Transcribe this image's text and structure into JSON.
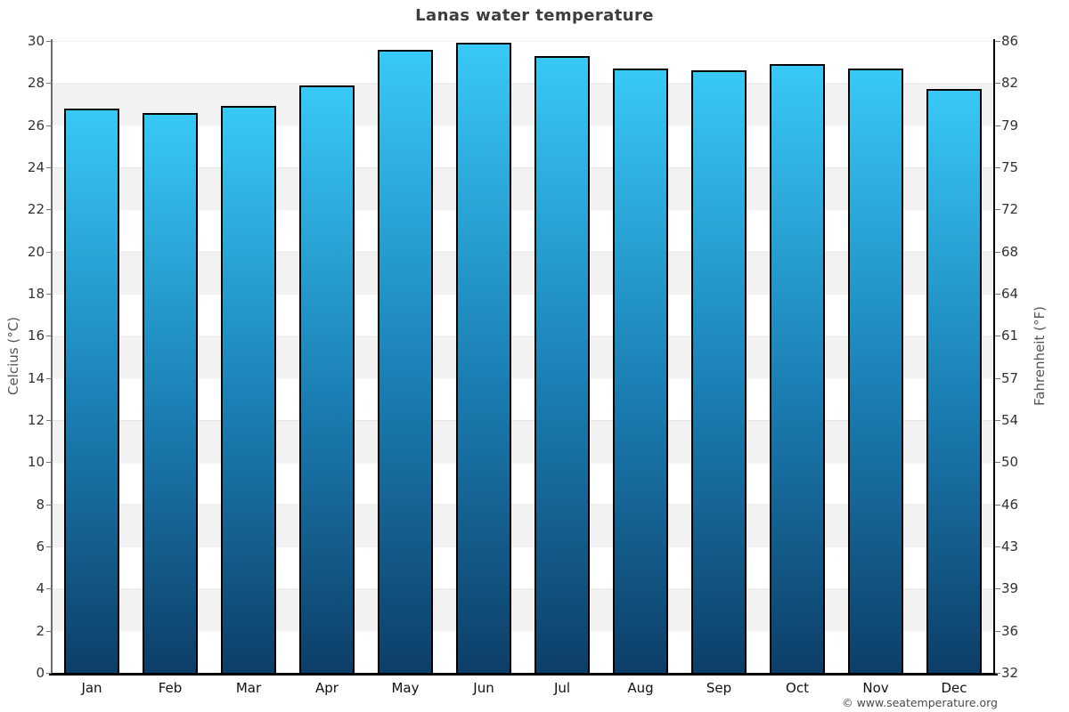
{
  "footer": {
    "credit": "© www.seatemperature.org"
  },
  "chart_data": {
    "type": "bar",
    "title": "Lanas water temperature",
    "categories": [
      "Jan",
      "Feb",
      "Mar",
      "Apr",
      "May",
      "Jun",
      "Jul",
      "Aug",
      "Sep",
      "Oct",
      "Nov",
      "Dec"
    ],
    "series": [
      {
        "name": "Water temperature (°C)",
        "values": [
          26.8,
          26.6,
          26.9,
          27.9,
          29.6,
          29.9,
          29.3,
          28.7,
          28.6,
          28.9,
          28.7,
          27.7
        ]
      }
    ],
    "xlabel": "",
    "ylabel_left": "Celcius (°C)",
    "ylabel_right": "Fahrenheit (°F)",
    "ylim": [
      0,
      30
    ],
    "yticks_celsius": [
      30,
      28,
      26,
      24,
      22,
      20,
      18,
      16,
      14,
      12,
      10,
      8,
      6,
      4,
      2,
      0
    ],
    "yticks_fahrenheit": [
      "86",
      "82",
      "79",
      "75",
      "72",
      "68",
      "64",
      "61",
      "57",
      "54",
      "50",
      "46",
      "43",
      "39",
      "36",
      "32"
    ],
    "grid": "alternating horizontal bands every 2°C",
    "legend": "none",
    "colors": {
      "bar_top": "#38c9f7",
      "bar_mid": "#1b80b5",
      "bar_bottom": "#0d3e68",
      "bar_border": "#000000",
      "band_gray": "#f2f2f2",
      "band_white": "#ffffff",
      "title_text": "#3d3d3d",
      "tick_text": "#333333",
      "axis_title_text": "#555555",
      "footer_text": "#4a4a4a"
    }
  }
}
